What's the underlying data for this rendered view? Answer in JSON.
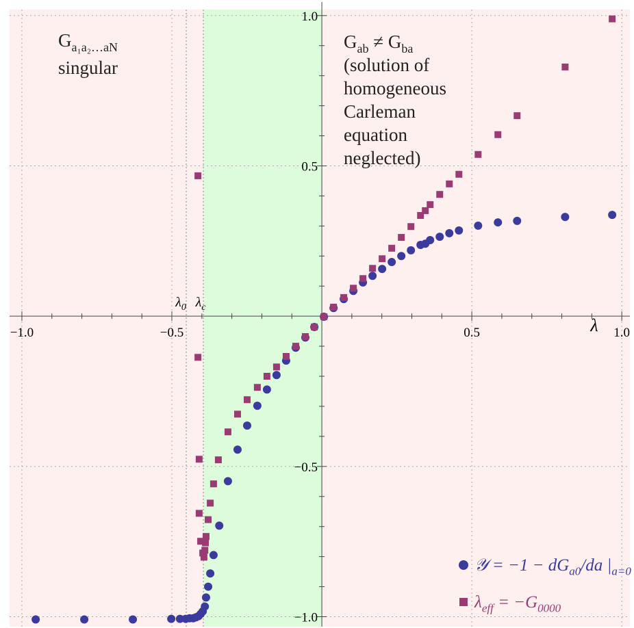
{
  "chart_data": {
    "type": "scatter",
    "xlabel": "λ",
    "xlim": [
      -1.041,
      1.027
    ],
    "ylim": [
      -1.033,
      1.02
    ],
    "xticks": [
      {
        "value": -1.0,
        "label": "−1.0"
      },
      {
        "value": -0.5,
        "label": "−0.5"
      },
      {
        "value": 0.5,
        "label": "0.5"
      },
      {
        "value": 1.0,
        "label": "1.0"
      }
    ],
    "yticks": [
      {
        "value": -1.0,
        "label": "−1.0"
      },
      {
        "value": -0.5,
        "label": "−0.5"
      },
      {
        "value": 0.5,
        "label": "0.5"
      },
      {
        "value": 1.0,
        "label": "1.0"
      }
    ],
    "xminorticks": [
      -0.9,
      -0.8,
      -0.7,
      -0.6,
      -0.4,
      -0.3,
      -0.2,
      -0.1,
      0.1,
      0.2,
      0.3,
      0.4,
      0.6,
      0.7,
      0.8,
      0.9
    ],
    "yminorticks": [
      -0.9,
      -0.8,
      -0.7,
      -0.6,
      -0.4,
      -0.3,
      -0.2,
      -0.1,
      0.1,
      0.2,
      0.3,
      0.4,
      0.6,
      0.7,
      0.8,
      0.9
    ],
    "grid": true,
    "background": "#fff0f0",
    "shaded_region": {
      "x": [
        -0.395,
        0
      ],
      "color": "#dcfcdc"
    },
    "markers": [
      {
        "value": -0.452,
        "label": [
          {
            "t": "λ"
          },
          {
            "sub": "0"
          }
        ]
      },
      {
        "value": -0.395,
        "label": [
          {
            "t": "λ"
          },
          {
            "sub": "c"
          }
        ]
      }
    ],
    "annotations": [
      {
        "lines": [
          [
            {
              "t": "G"
            },
            {
              "sub": "a₁a₂…aN"
            }
          ],
          [
            {
              "t": "singular"
            }
          ]
        ]
      },
      {
        "lines": [
          [
            {
              "t": "G"
            },
            {
              "sub": "ab"
            },
            {
              "t": " ≠ G"
            },
            {
              "sub": "ba"
            }
          ],
          [
            {
              "t": "(solution of"
            }
          ],
          [
            {
              "t": "homogeneous"
            }
          ],
          [
            {
              "t": "Carleman"
            }
          ],
          [
            {
              "t": "equation"
            }
          ],
          [
            {
              "t": "neglected)"
            }
          ]
        ]
      }
    ],
    "legend": "lower right",
    "series": [
      {
        "name": [
          {
            "t": "𝒴 = −1 − dG"
          },
          {
            "sub": "a0"
          },
          {
            "t": "/da |"
          },
          {
            "sub": "a=0"
          }
        ],
        "color": "#3b3b9e",
        "marker": "circle",
        "x": [
          -0.954,
          -0.792,
          -0.63,
          -0.502,
          -0.473,
          -0.454,
          -0.441,
          -0.429,
          -0.42,
          -0.411,
          -0.404,
          -0.397,
          -0.39,
          -0.386,
          -0.379,
          -0.372,
          -0.361,
          -0.342,
          -0.313,
          -0.281,
          -0.249,
          -0.215,
          -0.183,
          -0.151,
          -0.119,
          -0.087,
          -0.055,
          -0.025,
          0.007,
          0.039,
          0.073,
          0.105,
          0.137,
          0.169,
          0.201,
          0.233,
          0.265,
          0.297,
          0.329,
          0.345,
          0.361,
          0.393,
          0.425,
          0.457,
          0.521,
          0.587,
          0.651,
          0.811,
          0.968
        ],
        "values": [
          -1.009,
          -1.009,
          -1.009,
          -1.007,
          -1.007,
          -1.007,
          -1.005,
          -1.005,
          -1.002,
          -0.998,
          -0.991,
          -0.982,
          -0.966,
          -0.936,
          -0.9,
          -0.856,
          -0.795,
          -0.697,
          -0.549,
          -0.444,
          -0.364,
          -0.298,
          -0.244,
          -0.196,
          -0.148,
          -0.105,
          -0.071,
          -0.036,
          -0.002,
          0.027,
          0.057,
          0.084,
          0.112,
          0.134,
          0.157,
          0.18,
          0.2,
          0.219,
          0.237,
          0.241,
          0.253,
          0.264,
          0.276,
          0.285,
          0.301,
          0.312,
          0.317,
          0.33,
          0.337
        ]
      },
      {
        "name": [
          {
            "t": "λ"
          },
          {
            "sub": "eff"
          },
          {
            "t": " = −G"
          },
          {
            "sub": "0000"
          }
        ],
        "color": "#9b3b73",
        "marker": "square",
        "x": [
          -0.413,
          -0.413,
          -0.409,
          -0.409,
          -0.404,
          -0.397,
          -0.393,
          -0.39,
          -0.388,
          -0.386,
          -0.379,
          -0.372,
          -0.361,
          -0.345,
          -0.313,
          -0.281,
          -0.249,
          -0.215,
          -0.183,
          -0.151,
          -0.119,
          -0.087,
          -0.055,
          -0.025,
          0.007,
          0.039,
          0.073,
          0.105,
          0.137,
          0.169,
          0.201,
          0.233,
          0.265,
          0.297,
          0.329,
          0.345,
          0.361,
          0.393,
          0.425,
          0.457,
          0.521,
          0.587,
          0.651,
          0.811,
          0.968
        ],
        "values": [
          0.467,
          -0.137,
          -0.476,
          -0.656,
          -0.749,
          -0.788,
          -0.802,
          -0.779,
          -0.754,
          -0.733,
          -0.677,
          -0.622,
          -0.558,
          -0.478,
          -0.385,
          -0.326,
          -0.278,
          -0.237,
          -0.2,
          -0.169,
          -0.134,
          -0.1,
          -0.068,
          -0.036,
          -0.002,
          0.03,
          0.062,
          0.093,
          0.125,
          0.159,
          0.191,
          0.226,
          0.262,
          0.298,
          0.335,
          0.351,
          0.371,
          0.405,
          0.44,
          0.472,
          0.538,
          0.604,
          0.667,
          0.829,
          0.989
        ]
      }
    ]
  }
}
